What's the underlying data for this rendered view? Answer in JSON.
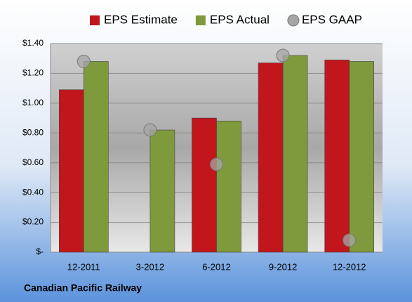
{
  "chart_data": {
    "type": "bar",
    "categories": [
      "12-2011",
      "3-2012",
      "6-2012",
      "9-2012",
      "12-2012"
    ],
    "series": [
      {
        "name": "EPS Estimate",
        "color": "#c0161c",
        "kind": "bar",
        "values": [
          1.09,
          null,
          0.9,
          1.27,
          1.29
        ]
      },
      {
        "name": "EPS Actual",
        "color": "#7f9a3c",
        "kind": "bar",
        "values": [
          1.28,
          0.82,
          0.88,
          1.32,
          1.28
        ]
      },
      {
        "name": "EPS GAAP",
        "color": "#a6a6a6",
        "kind": "scatter",
        "values": [
          1.28,
          0.82,
          0.59,
          1.32,
          0.08
        ]
      }
    ],
    "ylim": [
      0,
      1.4
    ],
    "yticks": [
      {
        "value": 0,
        "label": "$-"
      },
      {
        "value": 0.2,
        "label": "$0.20"
      },
      {
        "value": 0.4,
        "label": "$0.40"
      },
      {
        "value": 0.6,
        "label": "$0.60"
      },
      {
        "value": 0.8,
        "label": "$0.80"
      },
      {
        "value": 1.0,
        "label": "$1.00"
      },
      {
        "value": 1.2,
        "label": "$1.20"
      },
      {
        "value": 1.4,
        "label": "$1.40"
      }
    ],
    "grid": true,
    "footer": "Canadian Pacific Railway"
  }
}
